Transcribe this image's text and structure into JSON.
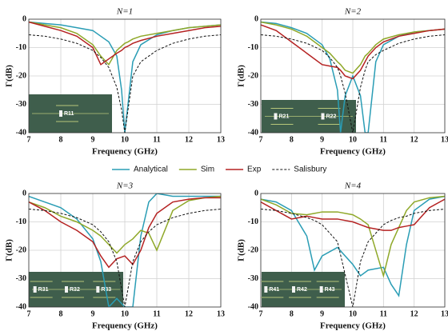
{
  "chart_data": [
    {
      "type": "line",
      "title": "N=1",
      "xlabel": "Frequency (GHz)",
      "ylabel": "Γ(dB)",
      "xlim": [
        7,
        13
      ],
      "xticks": [
        7,
        8,
        9,
        10,
        11,
        12,
        13
      ],
      "ylim": [
        -40,
        0
      ],
      "yticks": [
        -40,
        -30,
        -20,
        -10,
        0
      ],
      "grid": true,
      "inset_labels": [
        "R11"
      ],
      "x": [
        7,
        7.5,
        8,
        8.5,
        9,
        9.25,
        9.5,
        9.75,
        9.9,
        10,
        10.1,
        10.25,
        10.5,
        11,
        11.5,
        12,
        12.5,
        13
      ],
      "series": [
        {
          "name": "Analytical",
          "color": "#2a9db5",
          "style": "solid",
          "values": [
            -1,
            -1.5,
            -2,
            -3,
            -4,
            -6,
            -8,
            -13,
            -25,
            -40,
            -30,
            -15,
            -9,
            -5.5,
            -4,
            -3,
            -2.5,
            -2
          ]
        },
        {
          "name": "Sim",
          "color": "#8fa829",
          "style": "solid",
          "values": [
            -1,
            -2,
            -3,
            -5,
            -9,
            -13,
            -16,
            -11,
            -9.5,
            -8.5,
            -8,
            -7,
            -6,
            -5,
            -4,
            -3,
            -2.5,
            -2
          ]
        },
        {
          "name": "Exp",
          "color": "#b52222",
          "style": "solid",
          "values": [
            -1,
            -2.5,
            -4,
            -6,
            -10,
            -16,
            -14,
            -12,
            -11,
            -10,
            -9.5,
            -8.5,
            -7.5,
            -6,
            -5,
            -4,
            -3,
            -2.5
          ]
        },
        {
          "name": "Salisbury",
          "color": "#111111",
          "style": "dashed",
          "values": [
            -5.5,
            -6,
            -7,
            -8.5,
            -11,
            -13.5,
            -17,
            -24,
            -32,
            -40,
            -32,
            -20,
            -15,
            -11,
            -8.5,
            -7,
            -6,
            -5.5
          ]
        }
      ]
    },
    {
      "type": "line",
      "title": "N=2",
      "xlabel": "Frequency (GHz)",
      "ylabel": "Γ(dB)",
      "xlim": [
        7,
        13
      ],
      "xticks": [
        7,
        8,
        9,
        10,
        11,
        12,
        13
      ],
      "ylim": [
        -40,
        0
      ],
      "yticks": [
        -40,
        -30,
        -20,
        -10,
        0
      ],
      "grid": true,
      "inset_labels": [
        "R21",
        "R22"
      ],
      "x": [
        7,
        7.5,
        8,
        8.5,
        9,
        9.25,
        9.5,
        9.6,
        9.75,
        10,
        10.25,
        10.4,
        10.5,
        10.75,
        11,
        11.5,
        12,
        12.5,
        13
      ],
      "series": [
        {
          "color": "#2a9db5",
          "style": "solid",
          "values": [
            -1,
            -1.5,
            -3,
            -5,
            -9,
            -14,
            -25,
            -40,
            -27,
            -20,
            -27,
            -40,
            -40,
            -15,
            -9,
            -6,
            -4.5,
            -4,
            -3.5
          ]
        },
        {
          "color": "#8fa829",
          "style": "solid",
          "values": [
            -1,
            -2,
            -3.5,
            -6,
            -10,
            -12,
            -15,
            -16,
            -18,
            -19,
            -16,
            -13,
            -12,
            -9,
            -7,
            -5.5,
            -4.5,
            -4,
            -3.5
          ]
        },
        {
          "color": "#b52222",
          "style": "solid",
          "values": [
            -2,
            -4,
            -8,
            -12,
            -16,
            -16.5,
            -17,
            -18,
            -20,
            -21,
            -18,
            -15,
            -13,
            -10,
            -8,
            -6,
            -5,
            -4,
            -3.5
          ]
        },
        {
          "color": "#111111",
          "style": "dashed",
          "values": [
            -5.5,
            -6,
            -7,
            -8.5,
            -11,
            -13.5,
            -17,
            -20,
            -26,
            -40,
            -24,
            -18,
            -15,
            -12.5,
            -11,
            -8.5,
            -7,
            -6,
            -5.5
          ]
        }
      ]
    },
    {
      "type": "line",
      "title": "N=3",
      "xlabel": "Frequency (GHz)",
      "ylabel": "Γ(dB)",
      "xlim": [
        7,
        13
      ],
      "xticks": [
        7,
        8,
        9,
        10,
        11,
        12,
        13
      ],
      "ylim": [
        -40,
        0
      ],
      "yticks": [
        -40,
        -30,
        -20,
        -10,
        0
      ],
      "grid": true,
      "inset_labels": [
        "R31",
        "R32",
        "R33"
      ],
      "x": [
        7,
        7.5,
        8,
        8.5,
        9,
        9.25,
        9.5,
        9.75,
        10,
        10.25,
        10.5,
        10.75,
        11,
        11.5,
        12,
        12.5,
        13
      ],
      "series": [
        {
          "color": "#2a9db5",
          "style": "solid",
          "values": [
            -1,
            -3,
            -5,
            -9,
            -16,
            -24,
            -40,
            -37,
            -40,
            -40,
            -15,
            -3,
            0,
            -1,
            -1,
            -1,
            -1
          ]
        },
        {
          "color": "#8fa829",
          "style": "solid",
          "values": [
            -3,
            -5,
            -8,
            -10,
            -13,
            -15,
            -18,
            -21,
            -18,
            -16,
            -13,
            -14,
            -20,
            -6,
            -2.5,
            -1.5,
            -1
          ]
        },
        {
          "color": "#b52222",
          "style": "solid",
          "values": [
            -3,
            -6,
            -10,
            -13,
            -17,
            -22,
            -26,
            -23,
            -22,
            -25,
            -20,
            -12,
            -7,
            -3,
            -2,
            -1.5,
            -1.5
          ]
        },
        {
          "color": "#111111",
          "style": "dashed",
          "values": [
            -5.5,
            -6,
            -7,
            -8.5,
            -11,
            -13.5,
            -17,
            -24,
            -40,
            -24,
            -17,
            -13.5,
            -11,
            -8.5,
            -7,
            -6,
            -5.5
          ]
        }
      ]
    },
    {
      "type": "line",
      "title": "N=4",
      "xlabel": "Frequency (GHz)",
      "ylabel": "Γ(dB)",
      "xlim": [
        7,
        13
      ],
      "xticks": [
        7,
        8,
        9,
        10,
        11,
        12,
        13
      ],
      "ylim": [
        -40,
        0
      ],
      "yticks": [
        -40,
        -30,
        -20,
        -10,
        0
      ],
      "grid": true,
      "inset_labels": [
        "R41",
        "R42",
        "R43"
      ],
      "x": [
        7,
        7.5,
        8,
        8.5,
        8.75,
        9,
        9.5,
        10,
        10.25,
        10.5,
        11,
        11.25,
        11.5,
        11.75,
        12,
        12.5,
        13
      ],
      "series": [
        {
          "color": "#2a9db5",
          "style": "solid",
          "values": [
            -2,
            -3,
            -6,
            -15,
            -27,
            -22,
            -19,
            -25,
            -29,
            -27,
            -26,
            -32,
            -36,
            -18,
            -6,
            -2,
            -1
          ]
        },
        {
          "color": "#8fa829",
          "style": "solid",
          "values": [
            -2,
            -4,
            -7,
            -7.5,
            -7,
            -6.5,
            -6.5,
            -7.5,
            -9,
            -11,
            -29,
            -18,
            -12,
            -6,
            -3,
            -1.5,
            -1
          ]
        },
        {
          "color": "#b52222",
          "style": "solid",
          "values": [
            -3,
            -6,
            -9,
            -8,
            -8.5,
            -9,
            -9,
            -10,
            -11,
            -12,
            -13,
            -13,
            -12,
            -11.5,
            -11,
            -5,
            -2
          ]
        },
        {
          "color": "#111111",
          "style": "dashed",
          "values": [
            -5.5,
            -6,
            -7,
            -8.5,
            -9.5,
            -11,
            -17,
            -40,
            -24,
            -17,
            -11,
            -9.5,
            -8.5,
            -8,
            -7,
            -6,
            -5.5
          ]
        }
      ]
    }
  ]
}
